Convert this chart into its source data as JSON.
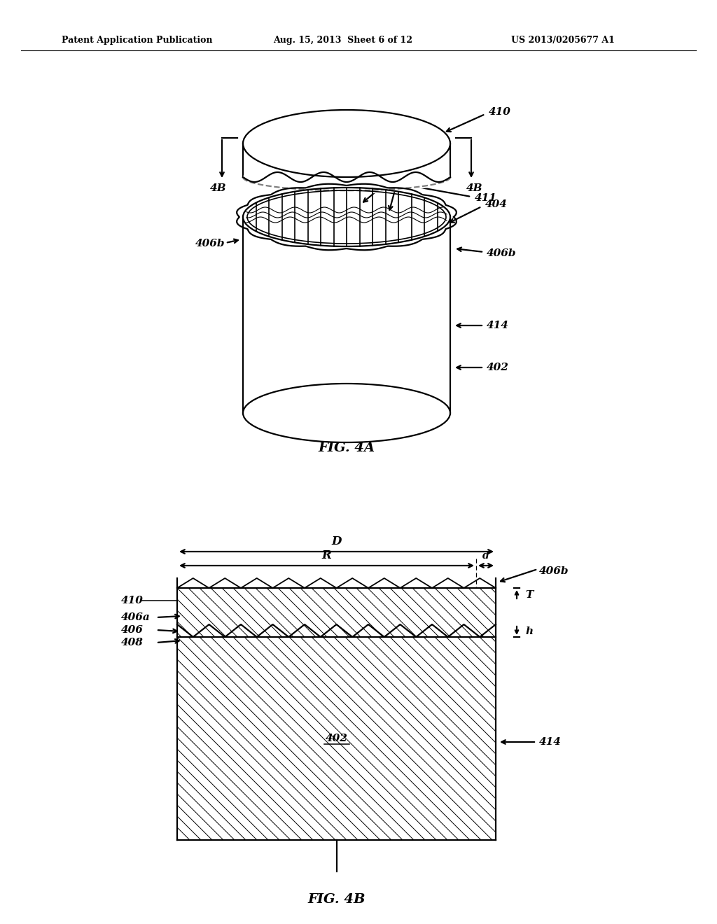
{
  "header_left": "Patent Application Publication",
  "header_mid": "Aug. 15, 2013  Sheet 6 of 12",
  "header_right": "US 2013/0205677 A1",
  "fig4a_label": "FIG. 4A",
  "fig4b_label": "FIG. 4B",
  "bg_color": "#ffffff",
  "line_color": "#000000"
}
